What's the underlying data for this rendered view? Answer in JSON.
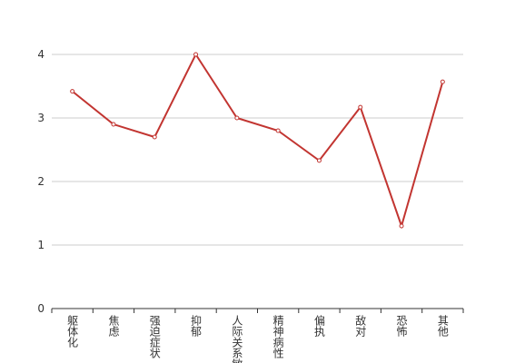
{
  "chart_data": {
    "type": "line",
    "categories": [
      "躯体化",
      "焦虑",
      "强迫症状",
      "抑郁",
      "人际关系敏感",
      "精神病性",
      "偏执",
      "敌对",
      "恐怖",
      "其他"
    ],
    "values": [
      3.42,
      2.9,
      2.7,
      4.0,
      3.0,
      2.8,
      2.33,
      3.17,
      1.3,
      3.57
    ],
    "color": "#c23531",
    "ylim": [
      0,
      4
    ],
    "yticks": [
      0,
      1,
      2,
      3,
      4
    ],
    "grid": true
  }
}
